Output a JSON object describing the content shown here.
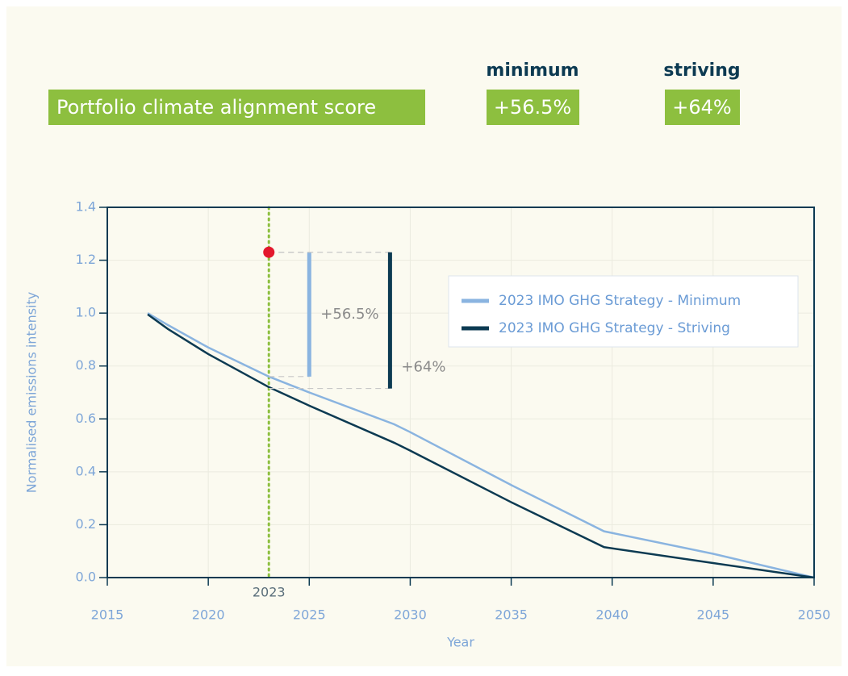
{
  "header": {
    "title": "Portfolio climate alignment score",
    "columns": [
      {
        "label": "minimum",
        "value": "+56.5%"
      },
      {
        "label": "striving",
        "value": "+64%"
      }
    ]
  },
  "chart_data": {
    "type": "line",
    "xlabel": "Year",
    "ylabel": "Normalised emissions intensity",
    "xlim": [
      2015,
      2050
    ],
    "xticks": [
      2015,
      2020,
      2025,
      2030,
      2035,
      2040,
      2045,
      2050
    ],
    "ylim": [
      0,
      1.4
    ],
    "yticks": [
      {
        "value": 0,
        "label": "0.0"
      },
      0.2,
      0.4,
      0.6,
      0.8,
      {
        "value": 1,
        "label": "1.0"
      },
      1.2,
      1.4
    ],
    "legend": "upper right",
    "x": [
      2017,
      2018,
      2020,
      2023,
      2025,
      2029.2,
      2030,
      2035,
      2039.6,
      2045,
      2050
    ],
    "series": [
      {
        "name": "2023 IMO GHG Strategy - Minimum",
        "color": "#8ab4e0",
        "values": [
          1.0,
          0.955,
          0.87,
          0.76,
          0.7,
          0.58,
          0.55,
          0.35,
          0.175,
          0.09,
          0.0
        ]
      },
      {
        "name": "2023 IMO GHG Strategy - Striving",
        "color": "#0c3a52",
        "values": [
          0.995,
          0.94,
          0.845,
          0.72,
          0.65,
          0.51,
          0.48,
          0.285,
          0.115,
          0.055,
          0.0
        ]
      }
    ],
    "annotations": {
      "reference": {
        "x": 2023,
        "label": "2023",
        "color": "#8dbf3f"
      },
      "current_point": {
        "x": 2023,
        "y": 1.23,
        "color": "#e3182d"
      },
      "gaps": [
        {
          "x": 2025,
          "from": 0.76,
          "to": 1.23,
          "label": "+56.5%",
          "color": "#8ab4e0"
        },
        {
          "x": 2029,
          "from": 0.715,
          "to": 1.23,
          "label": "+64%",
          "color": "#0c3a52"
        }
      ]
    }
  }
}
